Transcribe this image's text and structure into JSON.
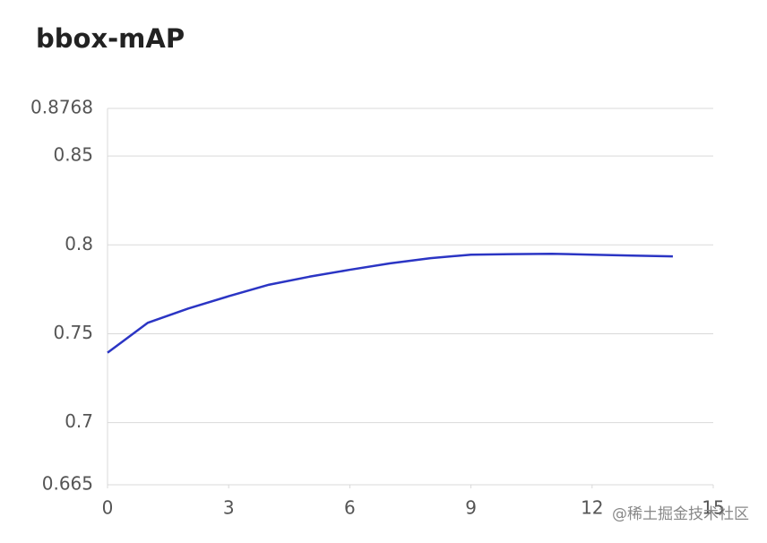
{
  "chart_data": {
    "type": "line",
    "title": "bbox-mAP",
    "x": [
      0,
      1,
      2,
      3,
      4,
      5,
      6,
      7,
      8,
      9,
      10,
      11,
      12,
      13,
      14
    ],
    "series": [
      {
        "name": "bbox-mAP",
        "color": "#2b35c4",
        "values": [
          0.7393,
          0.7562,
          0.7642,
          0.7711,
          0.7776,
          0.7821,
          0.786,
          0.7896,
          0.7925,
          0.7945,
          0.7948,
          0.795,
          0.7945,
          0.794,
          0.7935
        ]
      }
    ],
    "xlim": [
      0,
      15
    ],
    "xticks": [
      0,
      3,
      6,
      9,
      12,
      15
    ],
    "ylim": [
      0.665,
      0.8768
    ],
    "yticks": [
      0.665,
      0.7,
      0.75,
      0.8,
      0.85,
      0.8768
    ],
    "grid": true
  },
  "watermark": "@稀土掘金技术社区"
}
